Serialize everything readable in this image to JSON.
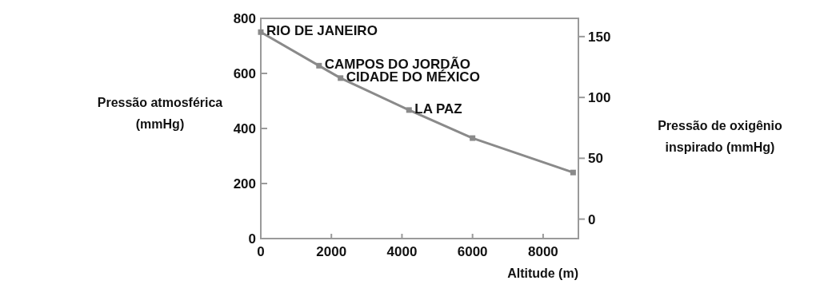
{
  "chart_data": {
    "type": "line",
    "xlabel": "Altitude (m)",
    "ylabel": "Pressão atmosférica\n(mmHg)",
    "y2label": "Pressão de oxigênio\ninspirado (mmHg)",
    "x": [
      0,
      1650,
      2260,
      4200,
      6000,
      8850
    ],
    "series": [
      {
        "color": "#8a8a8a",
        "values": [
          750,
          628,
          583,
          467,
          365,
          240
        ]
      }
    ],
    "xlim": [
      0,
      9000
    ],
    "xticks": [
      0,
      2000,
      4000,
      6000,
      8000
    ],
    "ylim": [
      0,
      800
    ],
    "yticks": [
      0,
      200,
      400,
      600,
      800
    ],
    "y2lim": [
      -16,
      165
    ],
    "y2ticks": [
      0,
      50,
      100,
      150
    ],
    "marker": "square",
    "line_style": "solid",
    "grid": false,
    "annotations": [
      {
        "text": "RIO DE JANEIRO",
        "x": 0,
        "y": 750
      },
      {
        "text": "CAMPOS DO JORDÃO",
        "x": 1650,
        "y": 628
      },
      {
        "text": "CIDADE DO MÉXICO",
        "x": 2260,
        "y": 583
      },
      {
        "text": "LA PAZ",
        "x": 4200,
        "y": 467
      }
    ]
  }
}
